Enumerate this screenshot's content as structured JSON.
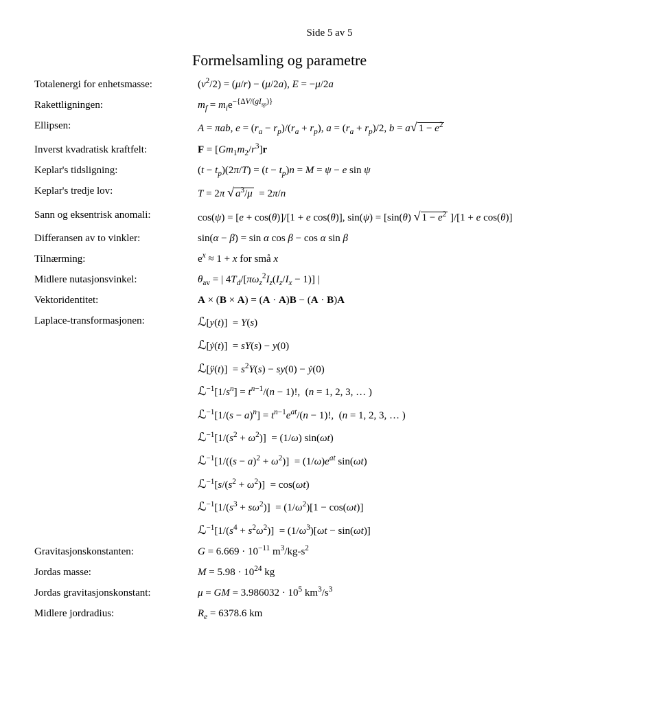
{
  "header": "Side 5 av 5",
  "title": "Formelsamling og parametre",
  "rows": [
    {
      "label": "Totalenergi for enhetsmasse:",
      "value": "(<i>v</i><sup>2</sup>/2) = (<i>μ</i>/<i>r</i>) − (<i>μ</i>/2<i>a</i>), <i>E</i> = −<i>μ</i>/2<i>a</i>"
    },
    {
      "label": "Rakettligningen:",
      "value": "<i>m<sub>f</sub></i> = <i>m<sub>i</sub></i>e<sup>−{Δ<i>V</i>/(<i>gI<sub>sp</sub></i>)}</sup>"
    },
    {
      "label": "Ellipsen:",
      "value": "<i>A</i> = <i>πab</i>, <i>e</i> = (<i>r<sub>a</sub></i> − <i>r<sub>p</sub></i>)/(<i>r<sub>a</sub></i> + <i>r<sub>p</sub></i>), <i>a</i> = (<i>r<sub>a</sub></i> + <i>r<sub>p</sub></i>)/2, <i>b</i> = <i>a</i><span class='sqrt-sign'>√</span><span class='sqrt'>1 − <i>e</i><sup>2</sup></span>"
    },
    {
      "label": "Inverst kvadratisk kraftfelt:",
      "value": "<b>F</b> = [<i>Gm</i><sub>1</sub><i>m</i><sub>2</sub>/<i>r</i><sup>3</sup>]<b>r</b>"
    },
    {
      "label": "Keplar's tidsligning:",
      "value": "(<i>t</i> − <i>t<sub>p</sub></i>)(2<i>π</i>/<i>T</i>) = (<i>t</i> − <i>t<sub>p</sub></i>)<i>n</i> = <i>M</i> = <i>ψ</i> − <i>e</i> sin <i>ψ</i>"
    },
    {
      "label": "Keplar's tredje lov:",
      "value": "<i>T</i> = 2<i>π</i> <span class='sqrt-sign'>√</span><span class='sqrt'><i>a</i><sup>3</sup>/<i>μ</i></span> &nbsp;= 2<i>π</i>/<i>n</i>"
    },
    {
      "label": "Sann og eksentrisk anomali:",
      "value": "cos(<i>ψ</i>) = [<i>e</i> + cos(<i>θ</i>)]/[1 + <i>e</i> cos(<i>θ</i>)], sin(<i>ψ</i>) = [sin(<i>θ</i>) <span class='sqrt-sign'>√</span><span class='sqrt'>1 − <i>e</i><sup>2</sup></span> ]/[1 + <i>e</i> cos(<i>θ</i>)]"
    },
    {
      "label": "Differansen av to vinkler:",
      "value": "sin(<i>α</i> − <i>β</i>) = sin <i>α</i> cos <i>β</i> − cos <i>α</i> sin <i>β</i>"
    },
    {
      "label": "Tilnærming:",
      "value": "e<sup><i>x</i></sup> ≈ 1 + <i>x</i> for små <i>x</i>"
    },
    {
      "label": "Midlere nutasjonsvinkel:",
      "value": "<i>θ</i><sub>av</sub> = | 4<i>T<sub>d</sub></i>/[<i>πω</i><sub><i>z</i></sub><sup>2</sup><i>I<sub>z</sub></i>(<i>I<sub>z</sub></i>/<i>I<sub>x</sub></i> − 1)] |"
    },
    {
      "label": "Vektoridentitet:",
      "value": "<b>A</b> × (<b>B</b> × <b>A</b>) = (<b>A</b> · <b>A</b>)<b>B</b> − (<b>A</b> · <b>B</b>)<b>A</b>"
    },
    {
      "label": "Laplace-transformasjonen:",
      "value": "<span class='cal-L'>ℒ</span>[<i>y</i>(<i>t</i>)] &nbsp;= <i>Y</i>(<i>s</i>)"
    },
    {
      "label": "",
      "value": "<span class='cal-L'>ℒ</span>[<i>ẏ</i>(<i>t</i>)] &nbsp;= <i>sY</i>(<i>s</i>) − <i>y</i>(0)"
    },
    {
      "label": "",
      "value": "<span class='cal-L'>ℒ</span>[<i>ÿ</i>(<i>t</i>)] &nbsp;= <i>s</i><sup>2</sup><i>Y</i>(<i>s</i>) − <i>sy</i>(0) − <i>ẏ</i>(0)"
    },
    {
      "label": "",
      "value": "<span class='cal-L'>ℒ</span><sup>−1</sup>[1/<i>s</i><sup><i>n</i></sup>] = <i>t</i><sup><i>n</i>−1</sup>/(<i>n</i> − 1)!, &nbsp;(<i>n</i> = 1, 2, 3, … )"
    },
    {
      "label": "",
      "value": "<span class='cal-L'>ℒ</span><sup>−1</sup>[1/(<i>s</i> − <i>a</i>)<sup><i>n</i></sup>] = <i>t</i><sup><i>n</i>−1</sup><i>e</i><sup><i>at</i></sup>/(<i>n</i> − 1)!, &nbsp;(<i>n</i> = 1, 2, 3, … )"
    },
    {
      "label": "",
      "value": "<span class='cal-L'>ℒ</span><sup>−1</sup>[1/(<i>s</i><sup>2</sup> + <i>ω</i><sup>2</sup>)] &nbsp;= (1/<i>ω</i>) sin(<i>ωt</i>)"
    },
    {
      "label": "",
      "value": "<span class='cal-L'>ℒ</span><sup>−1</sup>[1/((<i>s</i> − <i>a</i>)<sup>2</sup> + <i>ω</i><sup>2</sup>)] &nbsp;= (1/<i>ω</i>)<i>e</i><sup><i>at</i></sup> sin(<i>ωt</i>)"
    },
    {
      "label": "",
      "value": "<span class='cal-L'>ℒ</span><sup>−1</sup>[<i>s</i>/(<i>s</i><sup>2</sup> + <i>ω</i><sup>2</sup>)] &nbsp;= cos(<i>ωt</i>)"
    },
    {
      "label": "",
      "value": "<span class='cal-L'>ℒ</span><sup>−1</sup>[1/(<i>s</i><sup>3</sup> + <i>sω</i><sup>2</sup>)] &nbsp;= (1/<i>ω</i><sup>2</sup>)[1 − cos(<i>ωt</i>)]"
    },
    {
      "label": "",
      "value": "<span class='cal-L'>ℒ</span><sup>−1</sup>[1/(<i>s</i><sup>4</sup> + <i>s</i><sup>2</sup><i>ω</i><sup>2</sup>)] &nbsp;= (1/<i>ω</i><sup>3</sup>)[<i>ωt</i> − sin(<i>ωt</i>)]"
    },
    {
      "label": "Gravitasjonskonstanten:",
      "value": "<i>G</i> = 6.669 · 10<sup>−11</sup> m<sup>3</sup>/kg-s<sup>2</sup>"
    },
    {
      "label": "Jordas masse:",
      "value": "<i>M</i> = 5.98 · 10<sup>24</sup> kg"
    },
    {
      "label": "Jordas gravitasjonskonstant:",
      "value": "<i>μ</i> = <i>GM</i> = 3.986032 · 10<sup>5</sup> km<sup>3</sup>/s<sup>3</sup>"
    },
    {
      "label": "Midlere jordradius:",
      "value": "<i>R<sub>e</sub></i> = 6378.6 km"
    }
  ]
}
